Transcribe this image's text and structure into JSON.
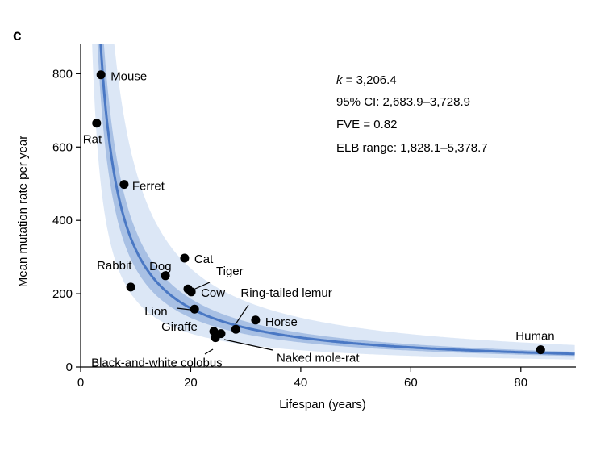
{
  "panel_label": "c",
  "chart_data": {
    "type": "scatter",
    "xlabel": "Lifespan (years)",
    "ylabel": "Mean mutation rate per year",
    "xlim": [
      0,
      90
    ],
    "ylim": [
      0,
      880
    ],
    "x_ticks": [
      0,
      20,
      40,
      60,
      80
    ],
    "y_ticks": [
      0,
      200,
      400,
      600,
      800
    ],
    "grid": false,
    "colors": {
      "points": "#000000",
      "fit_line": "#4a78c4",
      "ci_band": "#a8c0e4",
      "elb_band": "#dce7f6"
    },
    "fit": {
      "model": "y = k / x",
      "k": 3206.4,
      "ci": [
        2683.9,
        3728.9
      ],
      "elb": [
        1828.1,
        5378.7
      ]
    },
    "stats": [
      "k = 3,206.4",
      "95% CI: 2,683.9–3,728.9",
      "FVE = 0.82",
      "ELB range: 1,828.1–5,378.7"
    ],
    "stats_k_symbol": "k",
    "stats_k_rest": " = 3,206.4",
    "points": [
      {
        "label": "Mouse",
        "x": 3.7,
        "y": 797
      },
      {
        "label": "Rat",
        "x": 2.9,
        "y": 665
      },
      {
        "label": "Ferret",
        "x": 7.9,
        "y": 498
      },
      {
        "label": "Cat",
        "x": 18.9,
        "y": 297
      },
      {
        "label": "Dog",
        "x": 15.4,
        "y": 249
      },
      {
        "label": "Rabbit",
        "x": 9.1,
        "y": 218
      },
      {
        "label": "Tiger",
        "x": 19.5,
        "y": 213
      },
      {
        "label": "Cow",
        "x": 20.1,
        "y": 205
      },
      {
        "label": "Ring-tailed lemur",
        "x": 28.2,
        "y": 103
      },
      {
        "label": "Lion",
        "x": 20.7,
        "y": 158
      },
      {
        "label": "Horse",
        "x": 31.8,
        "y": 128
      },
      {
        "label": "Giraffe",
        "x": 24.2,
        "y": 97
      },
      {
        "label": "Naked mole-rat",
        "x": 25.5,
        "y": 91
      },
      {
        "label": "Black-and-white colobus",
        "x": 24.5,
        "y": 80
      },
      {
        "label": "Human",
        "x": 83.6,
        "y": 47
      }
    ]
  }
}
